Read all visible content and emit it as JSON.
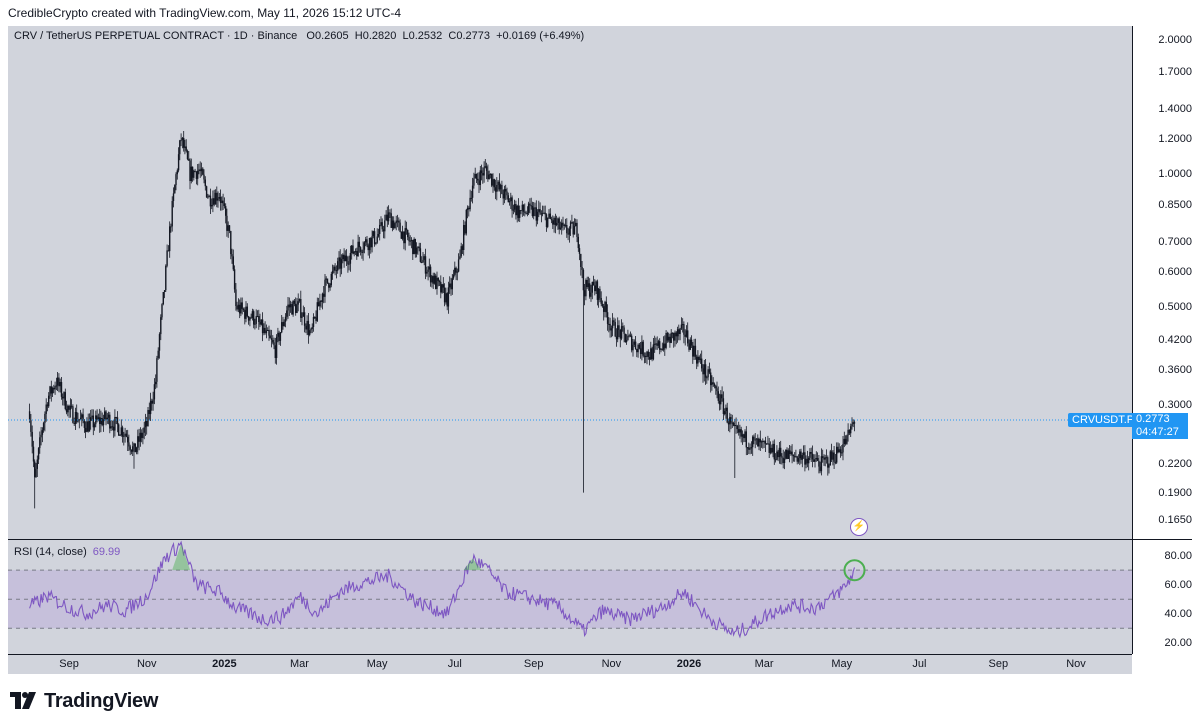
{
  "header": {
    "attribution": "CredibleCrypto created with TradingView.com, May 11, 2026 15:12 UTC-4"
  },
  "legend": {
    "symbol": "CRV / TetherUS PERPETUAL CONTRACT · 1D · Binance",
    "o_label": "O",
    "o_value": "0.2605",
    "h_label": "H",
    "h_value": "0.2820",
    "l_label": "L",
    "l_value": "0.2532",
    "c_label": "C",
    "c_value": "0.2773",
    "change": "+0.0169 (+6.49%)"
  },
  "price_axis": {
    "ticks": [
      "2.0000",
      "1.7000",
      "1.4000",
      "1.2000",
      "1.0000",
      "0.8500",
      "0.7000",
      "0.6000",
      "0.5000",
      "0.4200",
      "0.3600",
      "0.3000",
      "0.2200",
      "0.1900",
      "0.1650"
    ]
  },
  "current_price": {
    "symbol": "CRVUSDT.P",
    "price": "0.2773",
    "countdown": "04:47:27"
  },
  "rsi": {
    "label": "RSI (14, close)",
    "value": "69.99",
    "ticks": [
      "80.00",
      "60.00",
      "40.00",
      "20.00"
    ]
  },
  "time_axis": {
    "ticks": [
      {
        "label": "Sep",
        "bold": false
      },
      {
        "label": "Nov",
        "bold": false
      },
      {
        "label": "2025",
        "bold": true
      },
      {
        "label": "Mar",
        "bold": false
      },
      {
        "label": "May",
        "bold": false
      },
      {
        "label": "Jul",
        "bold": false
      },
      {
        "label": "Sep",
        "bold": false
      },
      {
        "label": "Nov",
        "bold": false
      },
      {
        "label": "2026",
        "bold": true
      },
      {
        "label": "Mar",
        "bold": false
      },
      {
        "label": "May",
        "bold": false
      },
      {
        "label": "Jul",
        "bold": false
      },
      {
        "label": "Sep",
        "bold": false
      },
      {
        "label": "Nov",
        "bold": false
      }
    ]
  },
  "branding": {
    "logo_text": "TradingView"
  },
  "colors": {
    "background": "#d1d4dc",
    "candles": "#131722",
    "rsi_line": "#7e57c2",
    "rsi_band": "#b9a8d9",
    "accent": "#2196f3",
    "highlight_circle": "#4caf50"
  },
  "chart_data": {
    "type": "candlestick",
    "price_scale": "log",
    "ylim": [
      0.15,
      2.1
    ],
    "price_path": [
      [
        "2024-08-01",
        0.29
      ],
      [
        "2024-08-05",
        0.2
      ],
      [
        "2024-08-15",
        0.31
      ],
      [
        "2024-08-22",
        0.34
      ],
      [
        "2024-09-01",
        0.29
      ],
      [
        "2024-09-15",
        0.27
      ],
      [
        "2024-10-01",
        0.28
      ],
      [
        "2024-10-15",
        0.26
      ],
      [
        "2024-10-22",
        0.235
      ],
      [
        "2024-11-01",
        0.27
      ],
      [
        "2024-11-08",
        0.34
      ],
      [
        "2024-11-15",
        0.55
      ],
      [
        "2024-11-22",
        0.88
      ],
      [
        "2024-11-28",
        1.2
      ],
      [
        "2024-12-05",
        1.0
      ],
      [
        "2024-12-12",
        1.02
      ],
      [
        "2024-12-20",
        0.88
      ],
      [
        "2024-12-28",
        0.9
      ],
      [
        "2025-01-05",
        0.72
      ],
      [
        "2025-01-10",
        0.5
      ],
      [
        "2025-01-25",
        0.47
      ],
      [
        "2025-02-03",
        0.43
      ],
      [
        "2025-02-10",
        0.4
      ],
      [
        "2025-02-20",
        0.5
      ],
      [
        "2025-03-01",
        0.5
      ],
      [
        "2025-03-10",
        0.43
      ],
      [
        "2025-03-20",
        0.55
      ],
      [
        "2025-04-01",
        0.62
      ],
      [
        "2025-04-15",
        0.68
      ],
      [
        "2025-05-01",
        0.72
      ],
      [
        "2025-05-10",
        0.8
      ],
      [
        "2025-05-20",
        0.74
      ],
      [
        "2025-06-01",
        0.67
      ],
      [
        "2025-06-15",
        0.57
      ],
      [
        "2025-06-25",
        0.52
      ],
      [
        "2025-07-05",
        0.64
      ],
      [
        "2025-07-15",
        0.95
      ],
      [
        "2025-07-25",
        1.02
      ],
      [
        "2025-08-05",
        0.92
      ],
      [
        "2025-08-20",
        0.82
      ],
      [
        "2025-09-01",
        0.82
      ],
      [
        "2025-09-15",
        0.78
      ],
      [
        "2025-09-25",
        0.74
      ],
      [
        "2025-10-05",
        0.75
      ],
      [
        "2025-10-10",
        0.55
      ],
      [
        "2025-10-20",
        0.55
      ],
      [
        "2025-11-01",
        0.45
      ],
      [
        "2025-11-15",
        0.42
      ],
      [
        "2025-12-01",
        0.39
      ],
      [
        "2025-12-15",
        0.42
      ],
      [
        "2025-12-28",
        0.44
      ],
      [
        "2026-01-10",
        0.37
      ],
      [
        "2026-01-25",
        0.31
      ],
      [
        "2026-02-05",
        0.26
      ],
      [
        "2026-02-15",
        0.25
      ],
      [
        "2026-03-01",
        0.24
      ],
      [
        "2026-03-15",
        0.23
      ],
      [
        "2026-04-01",
        0.23
      ],
      [
        "2026-04-15",
        0.22
      ],
      [
        "2026-04-25",
        0.23
      ],
      [
        "2026-05-05",
        0.25
      ],
      [
        "2026-05-11",
        0.2773
      ]
    ],
    "rsi_levels": {
      "upper": 70,
      "middle": 50,
      "lower": 30
    },
    "rsi_path": [
      [
        "2024-08-01",
        45
      ],
      [
        "2024-08-15",
        52
      ],
      [
        "2024-09-01",
        44
      ],
      [
        "2024-09-15",
        40
      ],
      [
        "2024-10-01",
        46
      ],
      [
        "2024-10-15",
        42
      ],
      [
        "2024-11-01",
        52
      ],
      [
        "2024-11-15",
        78
      ],
      [
        "2024-11-28",
        88
      ],
      [
        "2024-12-10",
        60
      ],
      [
        "2024-12-28",
        55
      ],
      [
        "2025-01-10",
        44
      ],
      [
        "2025-02-01",
        36
      ],
      [
        "2025-02-15",
        38
      ],
      [
        "2025-03-01",
        52
      ],
      [
        "2025-03-15",
        40
      ],
      [
        "2025-04-01",
        55
      ],
      [
        "2025-04-15",
        60
      ],
      [
        "2025-05-10",
        66
      ],
      [
        "2025-06-01",
        48
      ],
      [
        "2025-06-25",
        40
      ],
      [
        "2025-07-15",
        78
      ],
      [
        "2025-07-25",
        72
      ],
      [
        "2025-08-10",
        55
      ],
      [
        "2025-09-01",
        50
      ],
      [
        "2025-09-20",
        45
      ],
      [
        "2025-10-10",
        28
      ],
      [
        "2025-10-25",
        42
      ],
      [
        "2025-11-15",
        36
      ],
      [
        "2025-12-10",
        44
      ],
      [
        "2025-12-28",
        55
      ],
      [
        "2026-01-15",
        38
      ],
      [
        "2026-02-05",
        26
      ],
      [
        "2026-02-15",
        30
      ],
      [
        "2026-03-01",
        38
      ],
      [
        "2026-03-20",
        46
      ],
      [
        "2026-04-10",
        44
      ],
      [
        "2026-04-25",
        52
      ],
      [
        "2026-05-05",
        60
      ],
      [
        "2026-05-11",
        69.99
      ]
    ]
  }
}
